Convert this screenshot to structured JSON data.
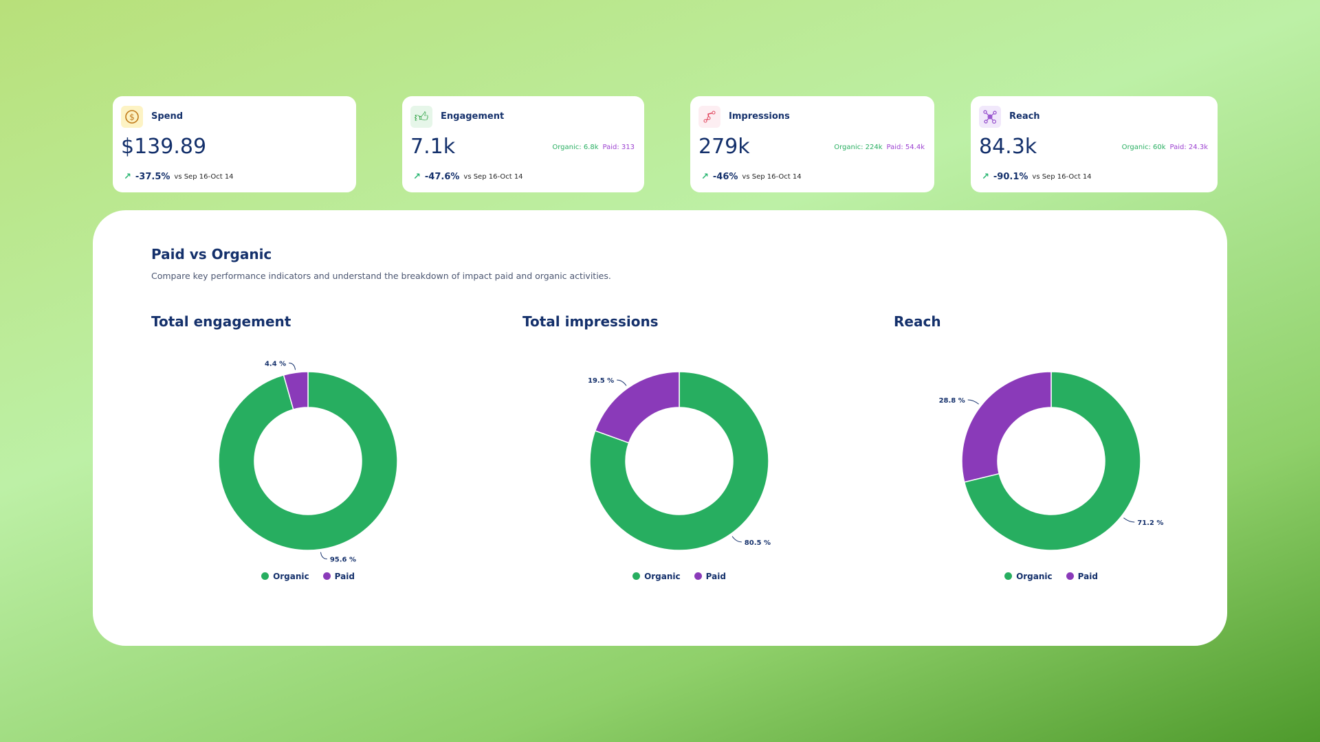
{
  "colors": {
    "organic": "#27ae60",
    "paid": "#8a3ab9",
    "text": "#14306b"
  },
  "cards": [
    {
      "label": "Spend",
      "icon": "dollar-coin-icon",
      "value": "$139.89",
      "change": "-37.5%",
      "compare": "vs Sep 16-Oct 14"
    },
    {
      "label": "Engagement",
      "icon": "thumbs-up-icon",
      "value": "7.1k",
      "organic": "Organic: 6.8k",
      "paid": "Paid: 313",
      "change": "-47.6%",
      "compare": "vs Sep 16-Oct 14"
    },
    {
      "label": "Impressions",
      "icon": "impressions-path-icon",
      "value": "279k",
      "organic": "Organic: 224k",
      "paid": "Paid: 54.4k",
      "change": "-46%",
      "compare": "vs Sep 16-Oct 14"
    },
    {
      "label": "Reach",
      "icon": "network-icon",
      "value": "84.3k",
      "organic": "Organic: 60k",
      "paid": "Paid: 24.3k",
      "change": "-90.1%",
      "compare": "vs Sep 16-Oct 14"
    }
  ],
  "panel": {
    "title": "Paid vs Organic",
    "subtitle": "Compare key performance indicators and understand the breakdown of impact paid and organic activities."
  },
  "chart_data": [
    {
      "type": "pie",
      "title": "Total engagement",
      "categories": [
        "Organic",
        "Paid"
      ],
      "values": [
        95.6,
        4.4
      ],
      "labels": [
        "95.6 %",
        "4.4 %"
      ]
    },
    {
      "type": "pie",
      "title": "Total impressions",
      "categories": [
        "Organic",
        "Paid"
      ],
      "values": [
        80.5,
        19.5
      ],
      "labels": [
        "80.5 %",
        "19.5 %"
      ]
    },
    {
      "type": "pie",
      "title": "Reach",
      "categories": [
        "Organic",
        "Paid"
      ],
      "values": [
        71.2,
        28.8
      ],
      "labels": [
        "71.2 %",
        "28.8 %"
      ]
    }
  ],
  "legend": {
    "organic": "Organic",
    "paid": "Paid"
  }
}
